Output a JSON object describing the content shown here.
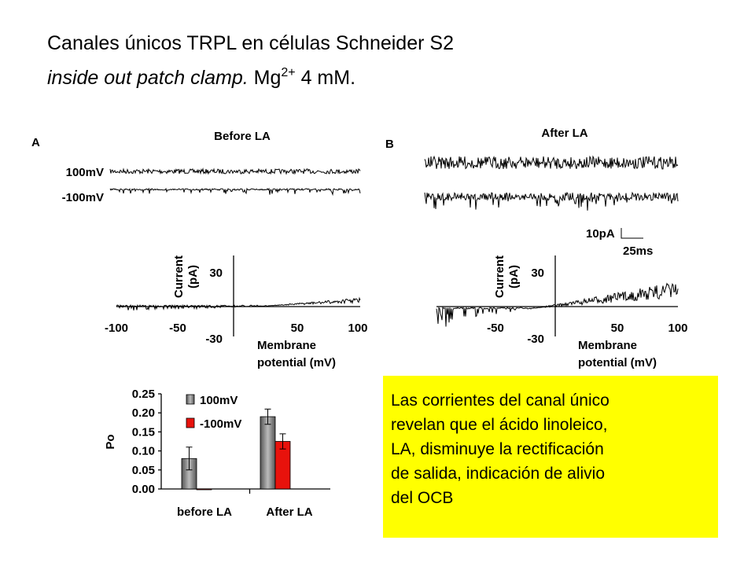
{
  "slide": {
    "title": "Canales únicos TRPL en células Schneider S2",
    "subtitle_italic": "inside out patch clamp.",
    "subtitle_ion": "Mg",
    "subtitle_charge": "2+",
    "subtitle_rest": " 4 mM.",
    "note": [
      "Las corrientes del canal único",
      "revelan que el ácido linoleico,",
      "LA, disminuye la rectificación",
      "de salida, indicación de alivio",
      "del OCB"
    ]
  },
  "panels": [
    {
      "label": "A",
      "title": "Before LA",
      "trace_labels": [
        "100mV",
        "-100mV"
      ],
      "y_label": [
        "Current",
        "(pA)"
      ],
      "y_ticks": [
        "30",
        "-30"
      ],
      "x_ticks": [
        "-100",
        "-50",
        "50",
        "100"
      ],
      "x_label": [
        "Membrane",
        "potential (mV)"
      ]
    },
    {
      "label": "B",
      "title": "After LA",
      "scale": [
        "10pA",
        "25ms"
      ],
      "y_label": [
        "Current",
        "(pA)"
      ],
      "y_ticks": [
        "30",
        "-30"
      ],
      "x_ticks": [
        "-50",
        "50",
        "100"
      ],
      "x_label": [
        "Membrane",
        "potential (mV)"
      ]
    }
  ],
  "chart_data": {
    "type": "bar",
    "y_label": "Po",
    "categories": [
      "before LA",
      "After LA"
    ],
    "series": [
      {
        "name": "100mV",
        "color": "#808080",
        "values": [
          0.08,
          0.19
        ],
        "errors": [
          0.03,
          0.02
        ]
      },
      {
        "name": "-100mV",
        "color": "#e8120c",
        "values": [
          0,
          0.125
        ],
        "errors": [
          null,
          0.02
        ]
      }
    ],
    "ylim": [
      0,
      0.25
    ],
    "yticks": [
      {
        "value": 0,
        "label": "0.00"
      },
      {
        "value": 0.05,
        "label": "0.05"
      },
      {
        "value": 0.1,
        "label": "0.10"
      },
      {
        "value": 0.15,
        "label": "0.15"
      },
      {
        "value": 0.2,
        "label": "0.20"
      },
      {
        "value": 0.25,
        "label": "0.25"
      }
    ]
  }
}
